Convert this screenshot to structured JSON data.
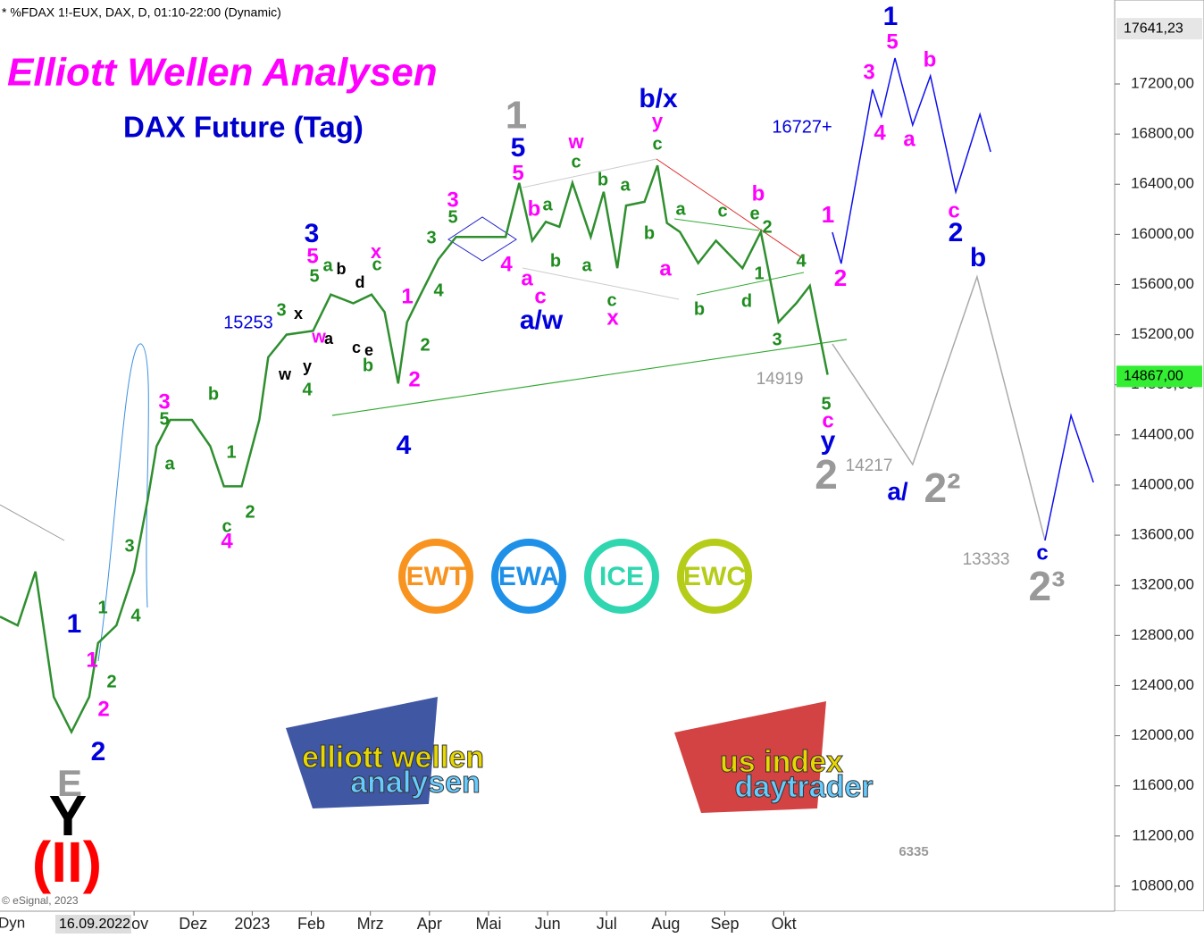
{
  "chart_data": {
    "type": "line",
    "header": "* %FDAX 1!-EUX, DAX, D, 01:10-22:00 (Dynamic)",
    "title": "Elliott Wellen Analysen",
    "subtitle": "DAX Future (Tag)",
    "copyright": "© eSignal, 2023",
    "mode": "Dyn",
    "date_box": "16.09.2022",
    "xlim": [
      -2.27,
      16.6
    ],
    "ylim": [
      10600,
      17870
    ],
    "xticks": [
      {
        "value": 0,
        "label": "Nov"
      },
      {
        "value": 1,
        "label": "Dez"
      },
      {
        "value": 2,
        "label": "2023"
      },
      {
        "value": 3,
        "label": "Feb"
      },
      {
        "value": 4,
        "label": "Mrz"
      },
      {
        "value": 5,
        "label": "Apr"
      },
      {
        "value": 6,
        "label": "Mai"
      },
      {
        "value": 7,
        "label": "Jun"
      },
      {
        "value": 8,
        "label": "Jul"
      },
      {
        "value": 9,
        "label": "Aug"
      },
      {
        "value": 10,
        "label": "Sep"
      },
      {
        "value": 11,
        "label": "Okt"
      }
    ],
    "yticks": [
      {
        "value": 17200,
        "label": "17200,00"
      },
      {
        "value": 16800,
        "label": "16800,00"
      },
      {
        "value": 16400,
        "label": "16400,00"
      },
      {
        "value": 16000,
        "label": "16000,00"
      },
      {
        "value": 15600,
        "label": "15600,00"
      },
      {
        "value": 15200,
        "label": "15200,00"
      },
      {
        "value": 14800,
        "label": "14800,00"
      },
      {
        "value": 14400,
        "label": "14400,00"
      },
      {
        "value": 14000,
        "label": "14000,00"
      },
      {
        "value": 13600,
        "label": "13600,00"
      },
      {
        "value": 13200,
        "label": "13200,00"
      },
      {
        "value": 12800,
        "label": "12800,00"
      },
      {
        "value": 12400,
        "label": "12400,00"
      },
      {
        "value": 12000,
        "label": "12000,00"
      },
      {
        "value": 11600,
        "label": "11600,00"
      },
      {
        "value": 11200,
        "label": "11200,00"
      },
      {
        "value": 10800,
        "label": "10800,00"
      }
    ],
    "price_labels": [
      {
        "value": 17641.23,
        "label": "17641,23",
        "color": "#e6e6e6"
      },
      {
        "value": 14867,
        "label": "14867,00",
        "color": "#33ee33"
      }
    ],
    "series": [
      {
        "color": "#2f8f2f",
        "x": [
          -2.27,
          -1.97,
          -1.67,
          -1.36,
          -1.06,
          -0.76,
          -0.61,
          -0.3,
          0,
          0.23,
          0.38,
          0.61,
          0.98,
          1.29,
          1.52,
          1.82,
          2.12,
          2.27,
          2.58,
          3.03,
          3.33,
          3.71,
          4.02,
          4.24,
          4.47,
          4.62,
          4.85,
          5.15,
          5.45,
          5.98,
          6.29,
          6.52,
          6.74,
          6.97,
          7.2,
          7.42,
          7.73,
          7.95,
          8.18,
          8.33,
          8.64,
          8.86,
          9.02,
          9.24,
          9.55,
          9.85,
          10.3,
          10.61,
          10.91,
          11.21,
          11.44,
          11.59,
          11.74
        ],
        "values": [
          12950,
          12880,
          13310,
          12310,
          12030,
          12310,
          12740,
          12880,
          13310,
          13880,
          14310,
          14520,
          14520,
          14310,
          13990,
          13990,
          14520,
          15020,
          15200,
          15230,
          15520,
          15450,
          15520,
          15380,
          14810,
          15300,
          15520,
          15800,
          15980,
          15980,
          15980,
          16410,
          15950,
          16100,
          16060,
          16410,
          15980,
          16340,
          15730,
          16230,
          16260,
          16550,
          16090,
          16020,
          15770,
          15950,
          15730,
          16020,
          15300,
          15450,
          15590,
          15230,
          14880
        ]
      },
      {
        "color": "#1010ee",
        "x": [
          11.82,
          11.97,
          12.5,
          12.65,
          12.88,
          13.18,
          13.48,
          13.91,
          14.32,
          14.5
        ],
        "values": [
          16017,
          15767,
          17157,
          16943,
          17407,
          16872,
          17264,
          16338,
          16958,
          16658
        ]
      },
      {
        "color": "#aaaaaa",
        "x": [
          11.82,
          13.18,
          14.27,
          15.42
        ],
        "values": [
          15126,
          14164,
          15661,
          13558
        ]
      },
      {
        "color": "#1010ee",
        "x": [
          15.42,
          15.86,
          16.24
        ],
        "values": [
          13558,
          14556,
          14021
        ]
      }
    ],
    "annotations": [
      {
        "color": "#999999",
        "labels": [
          "1",
          "2",
          "E",
          "2²",
          "2³"
        ]
      },
      {
        "color": "#0000dd",
        "labels": [
          "1",
          "5",
          "3",
          "4",
          "b/x",
          "a/w",
          "1",
          "2",
          "y",
          "2",
          "b",
          "c",
          "a/"
        ]
      },
      {
        "color": "#0000dd",
        "labels": [
          "16727+",
          "15253"
        ]
      },
      {
        "color": "#ff00ff",
        "labels": [
          "5",
          "3",
          "4",
          "a",
          "b",
          "c",
          "1",
          "2",
          "5",
          "x",
          "w",
          "y",
          "5",
          "3",
          "4",
          "a",
          "b",
          "c",
          "x",
          "a",
          "b",
          "1",
          "2",
          "3",
          "1",
          "2",
          "4",
          "c",
          "w"
        ]
      },
      {
        "color": "#1e8c1e",
        "labels": [
          "c",
          "b",
          "a",
          "c",
          "a",
          "b",
          "a",
          "c",
          "b",
          "a",
          "c",
          "e",
          "2",
          "b",
          "d",
          "1",
          "4",
          "3",
          "5",
          "5",
          "3",
          "4",
          "2",
          "a",
          "c",
          "5",
          "3",
          "4",
          "b",
          "5",
          "a",
          "b",
          "1",
          "c",
          "2",
          "3",
          "4",
          "1",
          "2"
        ]
      },
      {
        "color": "#000000",
        "labels": [
          "b",
          "d",
          "x",
          "a",
          "c",
          "e",
          "w",
          "y",
          "Y"
        ]
      },
      {
        "color": "#999999",
        "labels": [
          "14919",
          "14217",
          "13333",
          "6335"
        ]
      },
      {
        "color": "#ff0000",
        "labels": [
          "(II)"
        ]
      }
    ],
    "logos": [
      {
        "label": "EWT",
        "color": "#f7931e"
      },
      {
        "label": "EWA",
        "color": "#1e90e8"
      },
      {
        "label": "ICE",
        "color": "#2fd6b0"
      },
      {
        "label": "EWC",
        "color": "#b5cc18"
      }
    ],
    "brand_logos": [
      [
        "elliott wellen",
        "analysen"
      ],
      [
        "us index",
        "daytrader"
      ]
    ]
  }
}
